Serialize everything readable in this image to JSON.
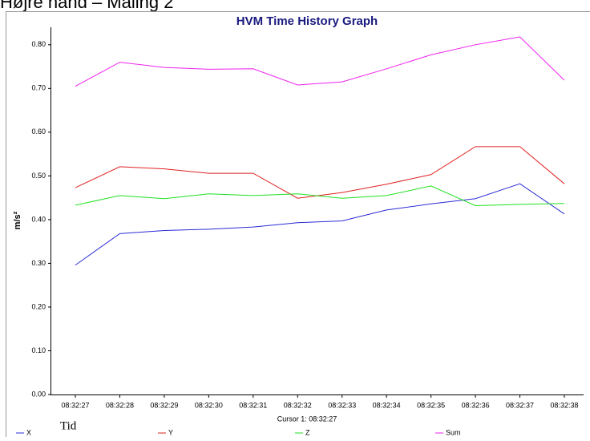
{
  "page_title": "Højre hånd – Måling 2",
  "chart_data": {
    "type": "line",
    "title": "HVM Time History Graph",
    "y_label": "m/s²",
    "x_label": "Tid",
    "annotation": "Cursor 1: 08:32:27",
    "categories": [
      "08:32:27",
      "08:32:28",
      "08:32:29",
      "08:32:30",
      "08:32:31",
      "08:32:32",
      "08:32:33",
      "08:32:34",
      "08:32:35",
      "08:32:36",
      "08:32:37",
      "08:32:38"
    ],
    "series": [
      {
        "name": "X",
        "color": "#2b2bd6",
        "values": [
          0.296,
          0.368,
          0.375,
          0.378,
          0.383,
          0.393,
          0.397,
          0.422,
          0.436,
          0.448,
          0.482,
          0.413
        ]
      },
      {
        "name": "Y",
        "color": "#e02020",
        "values": [
          0.473,
          0.521,
          0.516,
          0.506,
          0.506,
          0.449,
          0.462,
          0.481,
          0.503,
          0.567,
          0.567,
          0.482
        ]
      },
      {
        "name": "Z",
        "color": "#20e020",
        "values": [
          0.433,
          0.455,
          0.448,
          0.459,
          0.455,
          0.459,
          0.449,
          0.455,
          0.477,
          0.432,
          0.435,
          0.437
        ]
      },
      {
        "name": "Sum",
        "color": "#f020f0",
        "values": [
          0.705,
          0.76,
          0.748,
          0.744,
          0.745,
          0.708,
          0.715,
          0.745,
          0.777,
          0.8,
          0.818,
          0.719
        ]
      }
    ],
    "ylim": [
      0,
      0.84
    ],
    "yticks": [
      {
        "value": 0,
        "label": "0.00"
      },
      {
        "value": 0.1,
        "label": "0.10"
      },
      {
        "value": 0.2,
        "label": "0.20"
      },
      {
        "value": 0.3,
        "label": "0.30"
      },
      {
        "value": 0.4,
        "label": "0.40"
      },
      {
        "value": 0.5,
        "label": "0.50"
      },
      {
        "value": 0.6,
        "label": "0.60"
      },
      {
        "value": 0.7,
        "label": "0.70"
      },
      {
        "value": 0.8,
        "label": "0.80"
      }
    ],
    "grid": false
  }
}
